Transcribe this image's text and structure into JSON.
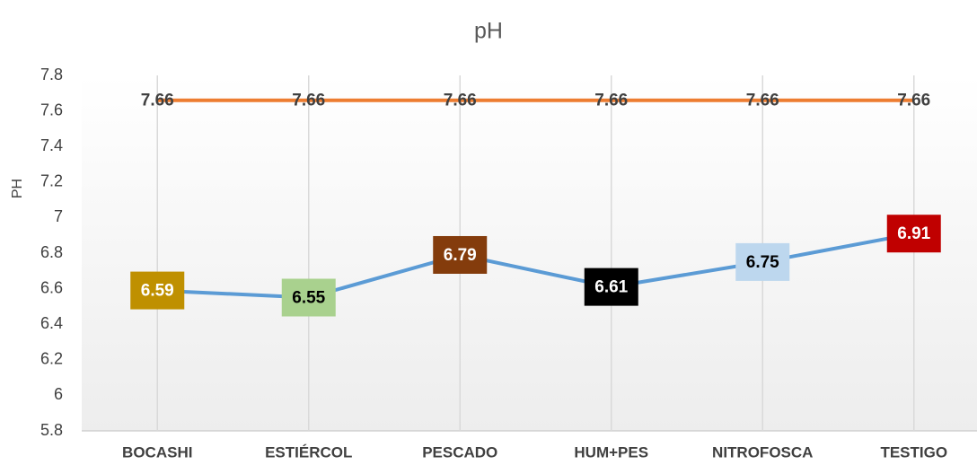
{
  "chart_data": {
    "type": "line",
    "title": "pH",
    "y_label": "PH",
    "categories": [
      "BOCASHI",
      "ESTIÉRCOL",
      "PESCADO",
      "HUM+PES",
      "NITROFOSCA",
      "TESTIGO"
    ],
    "series": [
      {
        "color": "#ed7d31",
        "values": [
          7.66,
          7.66,
          7.66,
          7.66,
          7.66,
          7.66
        ]
      },
      {
        "color": "#5b9bd5",
        "values": [
          6.59,
          6.55,
          6.79,
          6.61,
          6.75,
          6.91
        ],
        "label_colors": [
          "#bf9000",
          "#a9d18e",
          "#843c0c",
          "#000000",
          "#bdd7ee",
          "#c00000"
        ],
        "label_text_colors": [
          "#ffffff",
          "#000000",
          "#ffffff",
          "#ffffff",
          "#000000",
          "#ffffff"
        ]
      }
    ],
    "ylim": [
      5.8,
      7.8
    ],
    "yticks": [
      5.8,
      6,
      6.2,
      6.4,
      6.6,
      6.8,
      7,
      7.2,
      7.4,
      7.6,
      7.8
    ],
    "grid": true
  }
}
